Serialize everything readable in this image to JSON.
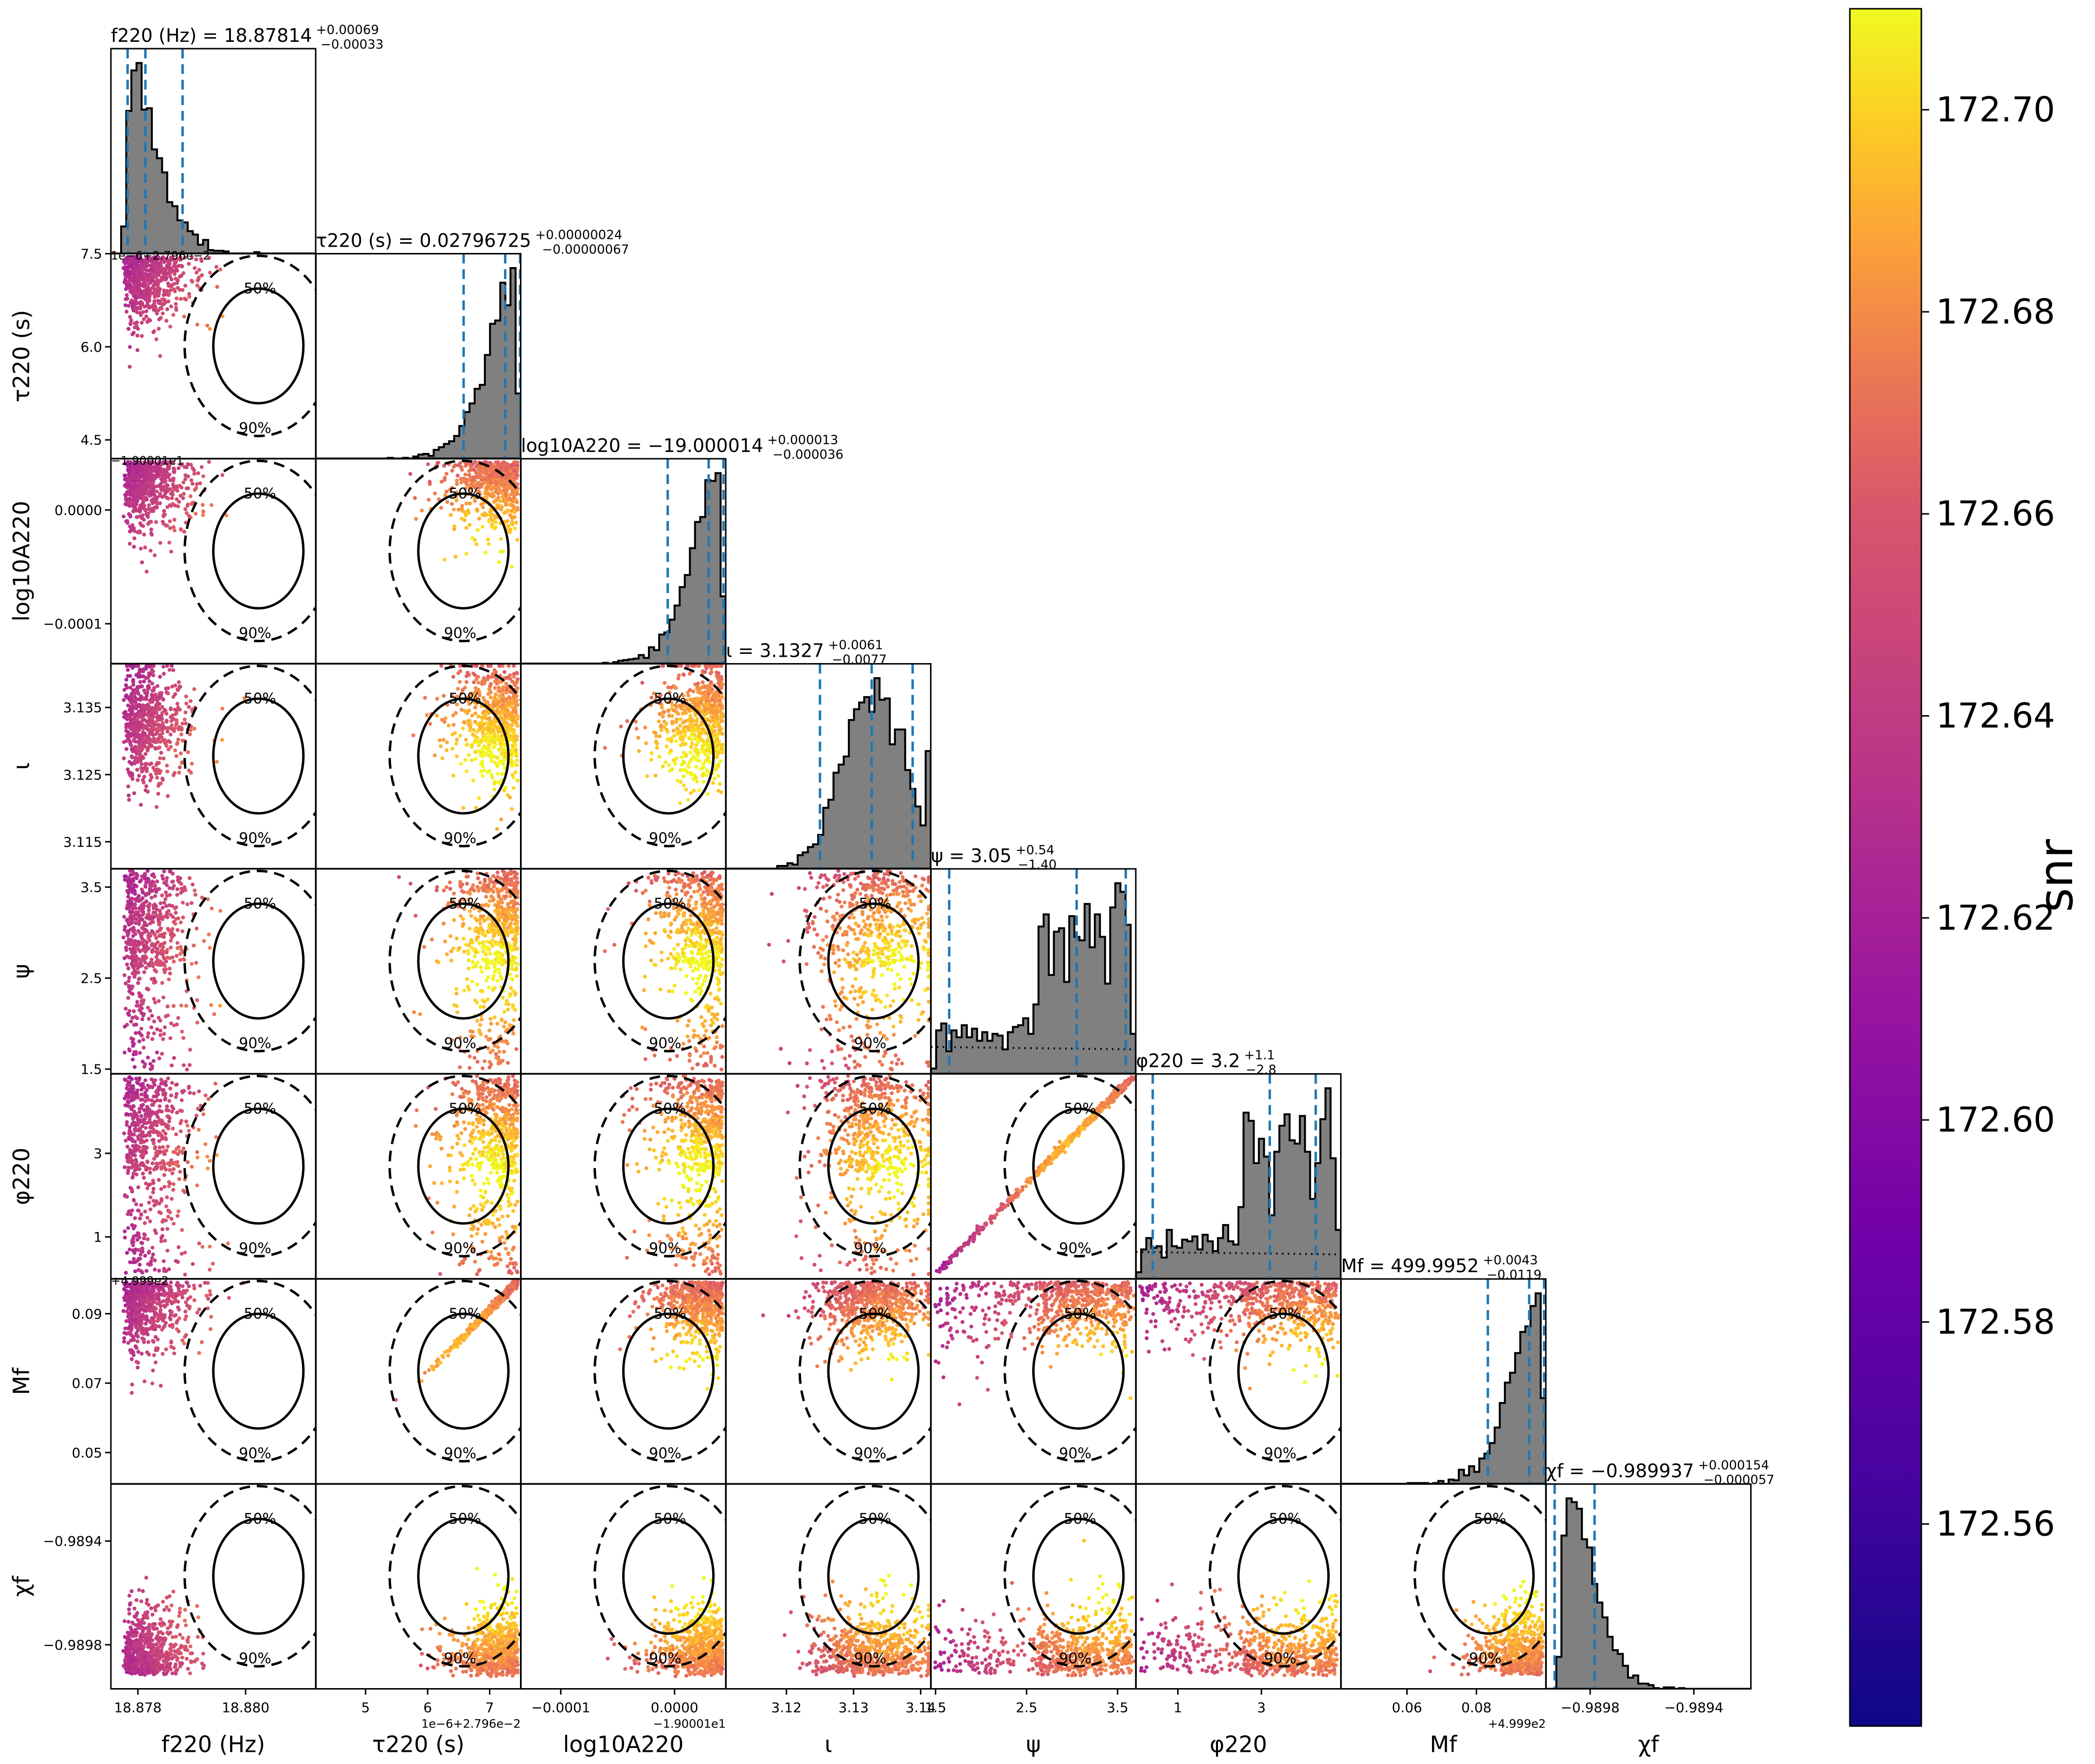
{
  "chart_data": {
    "type": "scatter",
    "subtype": "corner-plot",
    "grid": false,
    "legend": "none",
    "params": [
      {
        "key": "f220",
        "xlabel": "f220 (Hz)",
        "title": "f220 (Hz) = 18.87814",
        "err_up": "+0.00069",
        "err_dn": "−0.00033",
        "range": [
          18.8775,
          18.8813
        ],
        "median": 18.87814,
        "lo": 18.87781,
        "hi": 18.87883,
        "ticks": [
          18.878,
          18.88
        ],
        "ticklabels": [
          "18.878",
          "18.880"
        ],
        "offset": "",
        "hist": "skew-right",
        "peak": 18.8779
      },
      {
        "key": "tau220",
        "xlabel": "τ220 (s)",
        "title": "τ220 (s) = 0.02796725",
        "err_up": "+0.00000024",
        "err_dn": "−0.00000067",
        "range": [
          4.2,
          7.5
        ],
        "median": 7.25,
        "lo": 6.58,
        "hi": 7.49,
        "ticks": [
          4.5,
          6.0,
          7.5
        ],
        "ticklabels": [
          "4.5",
          "6.0",
          "7.5"
        ],
        "xticks": [
          5,
          6,
          7
        ],
        "xticklabels": [
          "5",
          "6",
          "7"
        ],
        "offset": "1e−6+2.796e−2",
        "hist": "skew-left",
        "peak": 7.45
      },
      {
        "key": "logA220",
        "xlabel": "log10A220",
        "title": "log10A220 = −19.000014",
        "err_up": "+0.000013",
        "err_dn": "−0.000036",
        "range": [
          -0.000135,
          4.5e-05
        ],
        "median": 3e-05,
        "lo": -6e-06,
        "hi": 4.3e-05,
        "ticks": [
          -0.0001,
          0.0
        ],
        "ticklabels": [
          "−0.0001",
          "0.0000"
        ],
        "offset": "−1.90001e1",
        "xoffset": "−1.90001e1",
        "hist": "skew-left",
        "peak": 4e-05
      },
      {
        "key": "iota",
        "xlabel": "ι",
        "title": "ι = 3.1327",
        "err_up": "+0.0061",
        "err_dn": "−0.0077",
        "range": [
          3.111,
          3.1415
        ],
        "median": 3.1327,
        "lo": 3.125,
        "hi": 3.1388,
        "ticks": [
          3.115,
          3.125,
          3.135
        ],
        "ticklabels": [
          "3.115",
          "3.125",
          "3.135"
        ],
        "xticks": [
          3.12,
          3.13,
          3.14
        ],
        "xticklabels": [
          "3.12",
          "3.13",
          "3.14"
        ],
        "offset": "",
        "hist": "gauss",
        "peak": 3.1335
      },
      {
        "key": "psi",
        "xlabel": "ψ",
        "title": "ψ = 3.05",
        "err_up": "+0.54",
        "err_dn": "−1.40",
        "range": [
          1.45,
          3.7
        ],
        "median": 3.05,
        "lo": 1.65,
        "hi": 3.59,
        "ticks": [
          1.5,
          2.5,
          3.5
        ],
        "ticklabels": [
          "1.5",
          "2.5",
          "3.5"
        ],
        "offset": "",
        "hist": "spiky",
        "peak": 3.5
      },
      {
        "key": "phi220",
        "xlabel": "φ220",
        "title": "φ220 = 3.2",
        "err_up": "+1.1",
        "err_dn": "−2.8",
        "range": [
          0.0,
          4.9
        ],
        "median": 3.2,
        "lo": 0.4,
        "hi": 4.3,
        "ticks": [
          1,
          3
        ],
        "ticklabels": [
          "1",
          "3"
        ],
        "offset": "",
        "hist": "spiky",
        "peak": 4.2
      },
      {
        "key": "Mf",
        "xlabel": "Mf",
        "title": "Mf = 499.9952",
        "err_up": "+0.0043",
        "err_dn": "−0.0119",
        "range": [
          0.041,
          0.1
        ],
        "median": 0.0952,
        "lo": 0.0833,
        "hi": 0.0995,
        "ticks": [
          0.05,
          0.07,
          0.09
        ],
        "ticklabels": [
          "0.05",
          "0.07",
          "0.09"
        ],
        "xticks": [
          0.06,
          0.08
        ],
        "xticklabels": [
          "0.06",
          "0.08"
        ],
        "offset": "+4.999e2",
        "hist": "skew-left",
        "peak": 0.098
      },
      {
        "key": "chif",
        "xlabel": "χf",
        "title": "χf = −0.989937",
        "err_up": "+0.000154",
        "err_dn": "−0.000057",
        "range": [
          -0.98997,
          -0.98918
        ],
        "median": -0.989937,
        "lo": -0.989994,
        "hi": -0.989783,
        "ticks": [
          -0.9898,
          -0.9894
        ],
        "ticklabels": [
          "−0.9898",
          "−0.9894"
        ],
        "offset": "",
        "hist": "skew-right",
        "peak": -0.98995
      }
    ],
    "colorbar": {
      "label": "snr",
      "min": 172.54,
      "max": 172.71,
      "colormap": "plasma",
      "ticks": [
        172.56,
        172.58,
        172.6,
        172.62,
        172.64,
        172.66,
        172.68,
        172.7
      ],
      "ticklabels": [
        "172.56",
        "172.58",
        "172.60",
        "172.62",
        "172.64",
        "172.66",
        "172.68",
        "172.70"
      ]
    },
    "contour_levels": [
      "50%",
      "90%"
    ],
    "colors": {
      "hist_fill": "#808080",
      "hist_edge": "#000000",
      "quantile_line": "#1f77b4",
      "contour": "#000000"
    }
  }
}
